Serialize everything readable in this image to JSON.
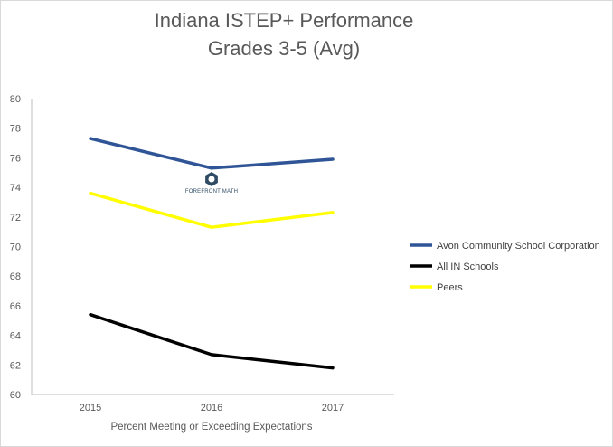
{
  "chart_data": {
    "type": "line",
    "title_line1": "Indiana ISTEP+ Performance",
    "title_line2": "Grades 3-5 (Avg)",
    "xlabel": "Percent Meeting or Exceeding Expectations",
    "ylabel": "",
    "categories": [
      "2015",
      "2016",
      "2017"
    ],
    "ylim": [
      60,
      80
    ],
    "yticks": [
      60,
      62,
      64,
      66,
      68,
      70,
      72,
      74,
      76,
      78,
      80
    ],
    "grid": false,
    "legend_position": "right",
    "series": [
      {
        "name": "Avon Community School Corporation",
        "color": "#2f5597",
        "values": [
          77.3,
          75.3,
          75.9
        ]
      },
      {
        "name": "All IN Schools",
        "color": "#000000",
        "values": [
          65.4,
          62.7,
          61.8
        ]
      },
      {
        "name": "Peers",
        "color": "#ffff00",
        "values": [
          73.6,
          71.3,
          72.3
        ]
      }
    ]
  },
  "watermark": {
    "text": "FOREFRONT MATH",
    "icon": "hexagon-logo-icon",
    "color": "#2f4b63"
  },
  "colors": {
    "axis": "#bfbfbf",
    "text": "#595959"
  }
}
